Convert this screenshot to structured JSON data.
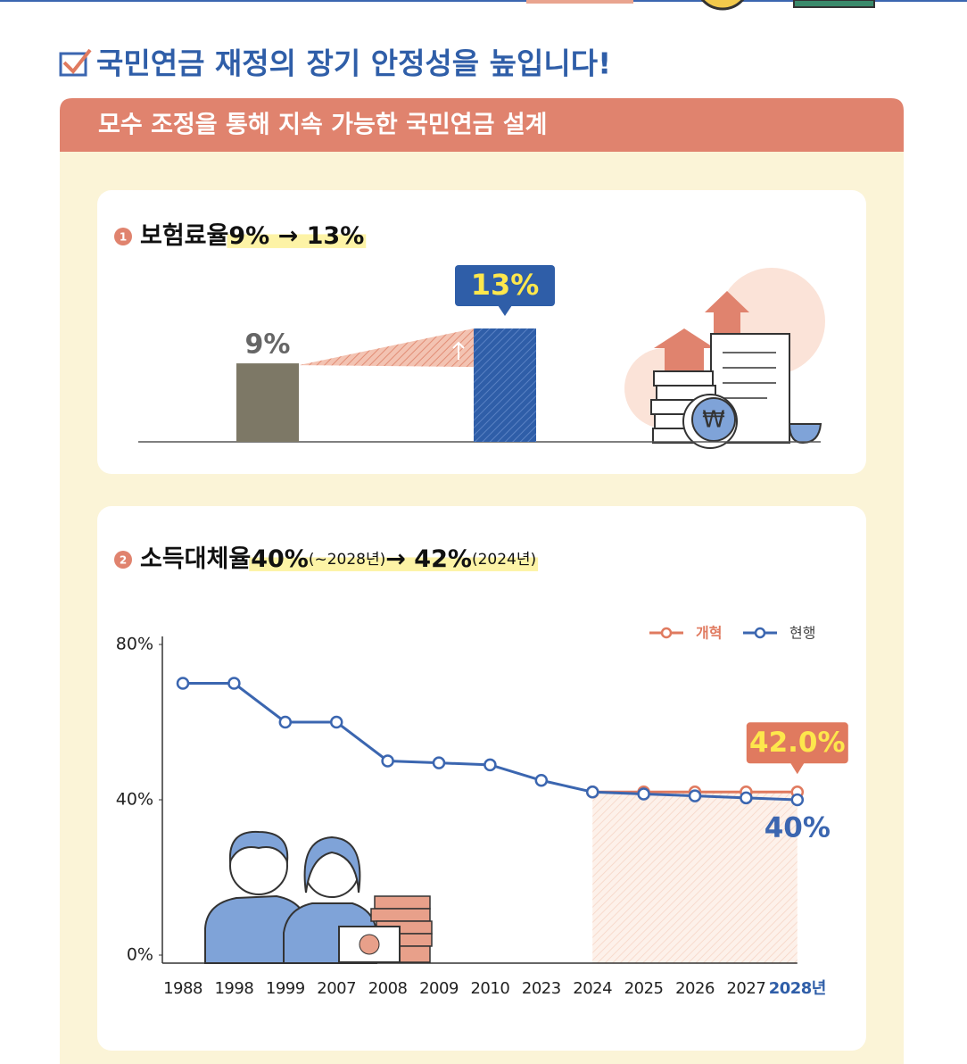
{
  "heading": "국민연금 재정의 장기 안정성을 높입니다!",
  "banner": "모수 조정을 통해 지속 가능한 국민연금 설계",
  "chart_data": [
    {
      "type": "bar",
      "badge": "1",
      "title": [
        "보험료율",
        "9% → 13%"
      ],
      "categories": [
        null,
        null
      ],
      "values": [
        9,
        13
      ],
      "value_labels": [
        "9%",
        "13%"
      ],
      "colors": [
        "#7d7866",
        "#2f5ea8"
      ]
    },
    {
      "type": "line",
      "badge": "2",
      "title": [
        "소득대체율",
        "40%",
        "(~2028년)",
        "→ ",
        "42%",
        "(2024년)"
      ],
      "categories": [
        "1988",
        "1998",
        "1999",
        "2007",
        "2008",
        "2009",
        "2010",
        "2023",
        "2024",
        "2025",
        "2026",
        "2027",
        "2028년"
      ],
      "series": [
        {
          "name": "개혁",
          "color": "#e07a5f",
          "values": [
            null,
            null,
            null,
            null,
            null,
            null,
            null,
            null,
            42,
            42,
            42,
            42,
            42
          ],
          "value_labels": [
            null,
            null,
            null,
            null,
            null,
            null,
            null,
            null,
            null,
            null,
            null,
            null,
            "42.0%"
          ]
        },
        {
          "name": "현행",
          "color": "#3b66b0",
          "values": [
            70,
            70,
            60,
            60,
            50,
            49.5,
            49,
            45,
            42,
            41.5,
            41,
            40.5,
            40
          ],
          "value_labels": [
            null,
            null,
            null,
            null,
            null,
            null,
            null,
            null,
            null,
            null,
            null,
            null,
            "40%"
          ]
        }
      ],
      "ylim": [
        0,
        80
      ],
      "yticks": [
        {
          "value": 0,
          "label": "0%"
        },
        {
          "value": 40,
          "label": "40%"
        },
        {
          "value": 80,
          "label": "80%"
        }
      ],
      "legend": "top-right",
      "grid": false
    }
  ]
}
